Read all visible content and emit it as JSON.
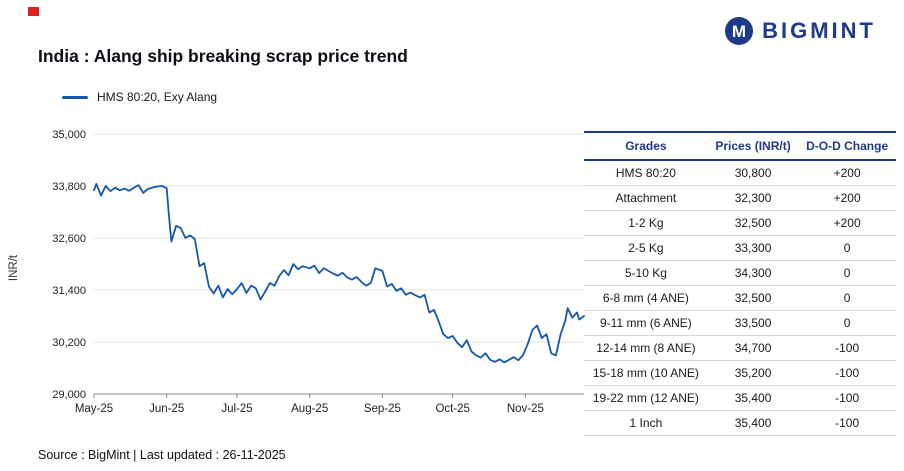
{
  "page": {
    "title": "India : Alang ship breaking scrap price trend",
    "source_note": "Source : BigMint | Last updated : 26-11-2025"
  },
  "logo": {
    "text": "BIGMINT"
  },
  "legend": {
    "label": "HMS 80:20, Exy Alang"
  },
  "colors": {
    "line_blue": "#1557b0",
    "navy": "#1e3a8a",
    "green": "#00a550",
    "red": "#e8222a",
    "grid": "#e3e3e3",
    "axis": "#8a8a8a"
  },
  "chart_data": {
    "type": "line",
    "title": "India : Alang ship breaking scrap price trend",
    "xlabel": "",
    "ylabel": "INR/t",
    "ylim": [
      29000,
      35000
    ],
    "yticks": [
      29000,
      30200,
      31400,
      32600,
      33800,
      35000
    ],
    "xmax": 209,
    "grid": "horizontal",
    "legend_position": "top-left",
    "xticks": [
      {
        "label": "May-25",
        "x": 0
      },
      {
        "label": "Jun-25",
        "x": 31
      },
      {
        "label": "Jul-25",
        "x": 61
      },
      {
        "label": "Aug-25",
        "x": 92
      },
      {
        "label": "Sep-25",
        "x": 123
      },
      {
        "label": "Oct-25",
        "x": 153
      },
      {
        "label": "Nov-25",
        "x": 184
      }
    ],
    "series": [
      {
        "name": "HMS 80:20, Exy Alang",
        "color": "#1557b0",
        "points": [
          [
            0,
            33700
          ],
          [
            1,
            33850
          ],
          [
            3,
            33580
          ],
          [
            5,
            33800
          ],
          [
            7,
            33680
          ],
          [
            9,
            33760
          ],
          [
            11,
            33700
          ],
          [
            13,
            33740
          ],
          [
            15,
            33690
          ],
          [
            17,
            33760
          ],
          [
            19,
            33820
          ],
          [
            21,
            33640
          ],
          [
            23,
            33730
          ],
          [
            26,
            33780
          ],
          [
            29,
            33800
          ],
          [
            31,
            33750
          ],
          [
            32,
            33100
          ],
          [
            33,
            32520
          ],
          [
            35,
            32880
          ],
          [
            37,
            32830
          ],
          [
            39,
            32600
          ],
          [
            41,
            32660
          ],
          [
            43,
            32580
          ],
          [
            45,
            31950
          ],
          [
            47,
            32020
          ],
          [
            49,
            31480
          ],
          [
            51,
            31320
          ],
          [
            53,
            31500
          ],
          [
            55,
            31230
          ],
          [
            57,
            31420
          ],
          [
            59,
            31300
          ],
          [
            61,
            31420
          ],
          [
            63,
            31560
          ],
          [
            65,
            31330
          ],
          [
            67,
            31500
          ],
          [
            69,
            31440
          ],
          [
            71,
            31180
          ],
          [
            73,
            31360
          ],
          [
            75,
            31560
          ],
          [
            77,
            31500
          ],
          [
            79,
            31720
          ],
          [
            81,
            31860
          ],
          [
            83,
            31740
          ],
          [
            85,
            32000
          ],
          [
            87,
            31880
          ],
          [
            89,
            31950
          ],
          [
            92,
            31900
          ],
          [
            94,
            31960
          ],
          [
            96,
            31790
          ],
          [
            98,
            31900
          ],
          [
            100,
            31840
          ],
          [
            102,
            31780
          ],
          [
            104,
            31730
          ],
          [
            106,
            31800
          ],
          [
            108,
            31690
          ],
          [
            110,
            31640
          ],
          [
            112,
            31700
          ],
          [
            114,
            31590
          ],
          [
            116,
            31500
          ],
          [
            118,
            31560
          ],
          [
            120,
            31900
          ],
          [
            123,
            31840
          ],
          [
            125,
            31480
          ],
          [
            127,
            31540
          ],
          [
            129,
            31380
          ],
          [
            131,
            31440
          ],
          [
            133,
            31290
          ],
          [
            135,
            31340
          ],
          [
            137,
            31280
          ],
          [
            139,
            31230
          ],
          [
            141,
            31290
          ],
          [
            143,
            30880
          ],
          [
            145,
            30940
          ],
          [
            147,
            30680
          ],
          [
            149,
            30380
          ],
          [
            151,
            30290
          ],
          [
            153,
            30340
          ],
          [
            155,
            30180
          ],
          [
            157,
            30080
          ],
          [
            159,
            30240
          ],
          [
            161,
            29980
          ],
          [
            163,
            29890
          ],
          [
            165,
            29840
          ],
          [
            167,
            29940
          ],
          [
            169,
            29790
          ],
          [
            171,
            29740
          ],
          [
            173,
            29800
          ],
          [
            175,
            29730
          ],
          [
            177,
            29790
          ],
          [
            179,
            29850
          ],
          [
            181,
            29780
          ],
          [
            183,
            29900
          ],
          [
            185,
            30150
          ],
          [
            187,
            30480
          ],
          [
            189,
            30580
          ],
          [
            191,
            30290
          ],
          [
            193,
            30380
          ],
          [
            195,
            29940
          ],
          [
            197,
            29890
          ],
          [
            199,
            30380
          ],
          [
            201,
            30680
          ],
          [
            202,
            30980
          ],
          [
            204,
            30760
          ],
          [
            206,
            30880
          ],
          [
            207,
            30720
          ],
          [
            209,
            30800
          ]
        ]
      }
    ]
  },
  "table": {
    "headers": [
      "Grades",
      "Prices (INR/t)",
      "D-O-D Change"
    ],
    "rows": [
      {
        "grade": "HMS 80:20",
        "price": "30,800",
        "change": "+200",
        "change_type": "up"
      },
      {
        "grade": "Attachment",
        "price": "32,300",
        "change": "+200",
        "change_type": "up"
      },
      {
        "grade": "1-2 Kg",
        "price": "32,500",
        "change": "+200",
        "change_type": "up"
      },
      {
        "grade": "2-5 Kg",
        "price": "33,300",
        "change": "0",
        "change_type": "zero"
      },
      {
        "grade": "5-10 Kg",
        "price": "34,300",
        "change": "0",
        "change_type": "zero"
      },
      {
        "grade": "6-8 mm (4 ANE)",
        "price": "32,500",
        "change": "0",
        "change_type": "zero"
      },
      {
        "grade": "9-11 mm (6 ANE)",
        "price": "33,500",
        "change": "0",
        "change_type": "zero"
      },
      {
        "grade": "12-14 mm (8 ANE)",
        "price": "34,700",
        "change": "-100",
        "change_type": "down"
      },
      {
        "grade": "15-18 mm (10 ANE)",
        "price": "35,200",
        "change": "-100",
        "change_type": "down"
      },
      {
        "grade": "19-22 mm (12 ANE)",
        "price": "35,400",
        "change": "-100",
        "change_type": "down"
      },
      {
        "grade": "1 Inch",
        "price": "35,400",
        "change": "-100",
        "change_type": "down"
      }
    ]
  }
}
